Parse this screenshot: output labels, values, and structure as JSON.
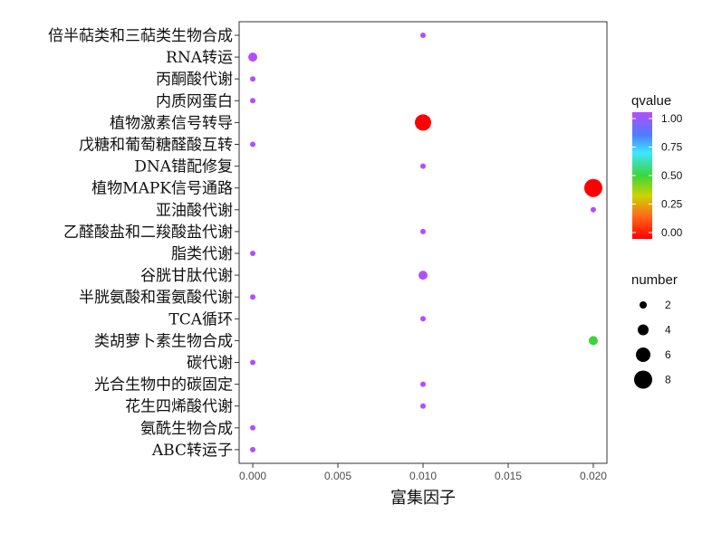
{
  "chart_data": {
    "type": "scatter",
    "title": "",
    "xlabel": "富集因子",
    "ylabel": "",
    "xlim": [
      -0.0008,
      0.0208
    ],
    "x_ticks": [
      "0.000",
      "0.005",
      "0.010",
      "0.015",
      "0.020"
    ],
    "x_tick_values": [
      0.0,
      0.005,
      0.01,
      0.015,
      0.02
    ],
    "grid": false,
    "legend_position": "right",
    "categories": [
      "倍半萜类和三萜类生物合成",
      "RNA转运",
      "丙酮酸代谢",
      "内质网蛋白",
      "植物激素信号转导",
      "戊糖和葡萄糖醛酸互转",
      "DNA错配修复",
      "植物MAPK信号通路",
      "亚油酸代谢",
      "乙醛酸盐和二羧酸盐代谢",
      "脂类代谢",
      "谷胱甘肽代谢",
      "半胱氨酸和蛋氨酸代谢",
      "TCA循环",
      "类胡萝卜素生物合成",
      "碳代谢",
      "光合生物中的碳固定",
      "花生四烯酸代谢",
      "氨酰生物合成",
      "ABC转运子"
    ],
    "points": [
      {
        "x": 0.01,
        "number": 1,
        "qvalue": 1.0
      },
      {
        "x": 0.0,
        "number": 3,
        "qvalue": 1.0
      },
      {
        "x": 0.0,
        "number": 1,
        "qvalue": 1.0
      },
      {
        "x": 0.0,
        "number": 1,
        "qvalue": 1.0
      },
      {
        "x": 0.01,
        "number": 7,
        "qvalue": 0.0
      },
      {
        "x": 0.0,
        "number": 1,
        "qvalue": 1.0
      },
      {
        "x": 0.01,
        "number": 1,
        "qvalue": 1.0
      },
      {
        "x": 0.02,
        "number": 8,
        "qvalue": 0.0
      },
      {
        "x": 0.02,
        "number": 1,
        "qvalue": 1.0
      },
      {
        "x": 0.01,
        "number": 1,
        "qvalue": 1.0
      },
      {
        "x": 0.0,
        "number": 1,
        "qvalue": 1.0
      },
      {
        "x": 0.01,
        "number": 3,
        "qvalue": 1.0
      },
      {
        "x": 0.0,
        "number": 1,
        "qvalue": 1.0
      },
      {
        "x": 0.01,
        "number": 1,
        "qvalue": 1.0
      },
      {
        "x": 0.02,
        "number": 3,
        "qvalue": 0.5
      },
      {
        "x": 0.0,
        "number": 1,
        "qvalue": 1.0
      },
      {
        "x": 0.01,
        "number": 1,
        "qvalue": 1.0
      },
      {
        "x": 0.01,
        "number": 1,
        "qvalue": 1.0
      },
      {
        "x": 0.0,
        "number": 1,
        "qvalue": 1.0
      },
      {
        "x": 0.0,
        "number": 1,
        "qvalue": 1.0
      }
    ],
    "legend": {
      "color_title": "qvalue",
      "color_ticks": [
        "1.00",
        "0.75",
        "0.50",
        "0.25",
        "0.00"
      ],
      "color_tick_values": [
        1.0,
        0.75,
        0.5,
        0.25,
        0.0
      ],
      "colors": [
        "#b34dff",
        "#4ddcff",
        "#2ecc40",
        "#ccb400",
        "#ff6a1a",
        "#ff0000"
      ],
      "size_title": "number",
      "size_ticks": [
        "2",
        "4",
        "6",
        "8"
      ],
      "size_tick_values": [
        2,
        4,
        6,
        8
      ]
    }
  }
}
